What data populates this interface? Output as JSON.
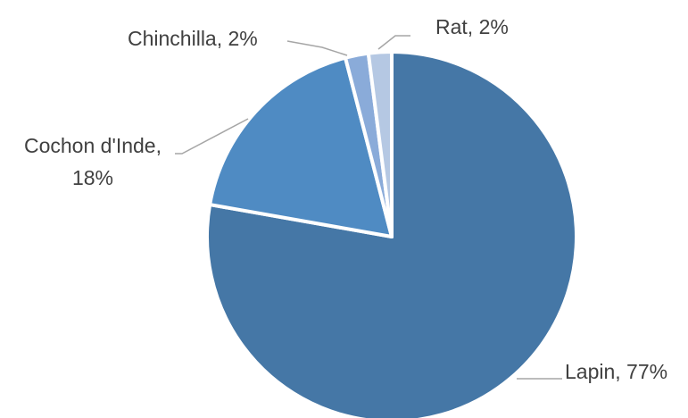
{
  "chart_data": {
    "type": "pie",
    "title": "",
    "categories": [
      "Lapin",
      "Cochon d'Inde",
      "Chinchilla",
      "Rat"
    ],
    "values": [
      77,
      18,
      2,
      2
    ],
    "data_labels": [
      "Lapin, 77%",
      "Cochon d'Inde, 18%",
      "Chinchilla, 2%",
      "Rat, 2%"
    ],
    "colors": [
      "#4577a6",
      "#4f8bc3",
      "#8aabd9",
      "#b5c8e3"
    ],
    "start_angle_deg": 0,
    "direction": "clockwise",
    "legend": "none"
  }
}
